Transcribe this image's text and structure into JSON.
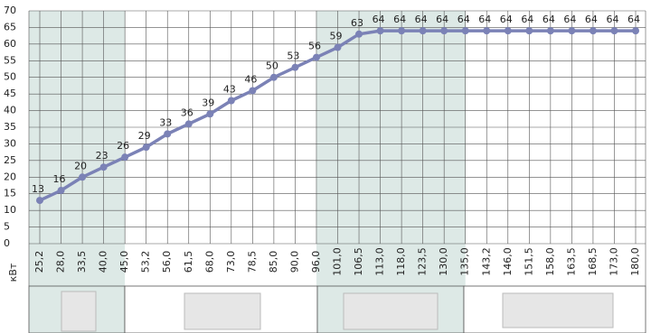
{
  "chart_data": {
    "type": "line",
    "x_label": "кВт",
    "categories": [
      "25,2",
      "28,0",
      "33,5",
      "40,0",
      "45,0",
      "53,2",
      "56,0",
      "61,5",
      "68,0",
      "73,0",
      "78,5",
      "85,0",
      "90,0",
      "96,0",
      "101,0",
      "106,5",
      "113,0",
      "118,0",
      "123,5",
      "130,0",
      "135,0",
      "143,2",
      "146,0",
      "151,5",
      "158,0",
      "163,5",
      "168,5",
      "173,0",
      "180,0"
    ],
    "values": [
      13,
      16,
      20,
      23,
      26,
      29,
      33,
      36,
      39,
      43,
      46,
      50,
      53,
      56,
      59,
      63,
      64,
      64,
      64,
      64,
      64,
      64,
      64,
      64,
      64,
      64,
      64,
      64,
      64
    ],
    "color": "#7b82b6",
    "ylim": [
      0,
      70
    ],
    "yticks": [
      0,
      5,
      10,
      15,
      20,
      25,
      30,
      35,
      40,
      45,
      50,
      55,
      60,
      65,
      70
    ],
    "grid": true
  }
}
